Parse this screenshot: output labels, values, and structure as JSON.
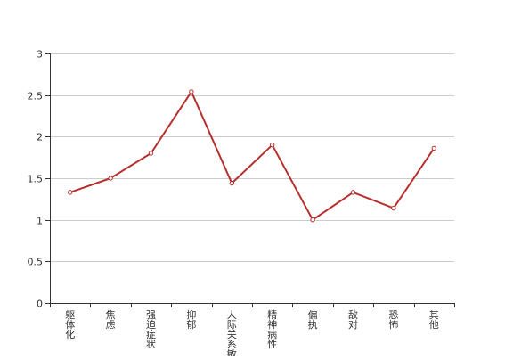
{
  "chart_data": {
    "type": "line",
    "categories": [
      "躯体化",
      "焦虑",
      "强迫症状",
      "抑郁",
      "人际关系敏感",
      "精神病性",
      "偏执",
      "敌对",
      "恐怖",
      "其他"
    ],
    "series": [
      {
        "values": [
          1.33,
          1.5,
          1.8,
          2.54,
          1.44,
          1.9,
          1.0,
          1.33,
          1.14,
          1.86
        ]
      }
    ],
    "ylim": [
      0,
      3
    ],
    "yticks": [
      0,
      0.5,
      1,
      1.5,
      2,
      2.5,
      3
    ],
    "ytick_labels": [
      "0",
      "0.5",
      "1",
      "1.5",
      "2",
      "2.5",
      "3"
    ],
    "grid": true,
    "colors": {
      "line": "#b5302e",
      "grid": "#cccccc",
      "axis": "#333333"
    }
  }
}
